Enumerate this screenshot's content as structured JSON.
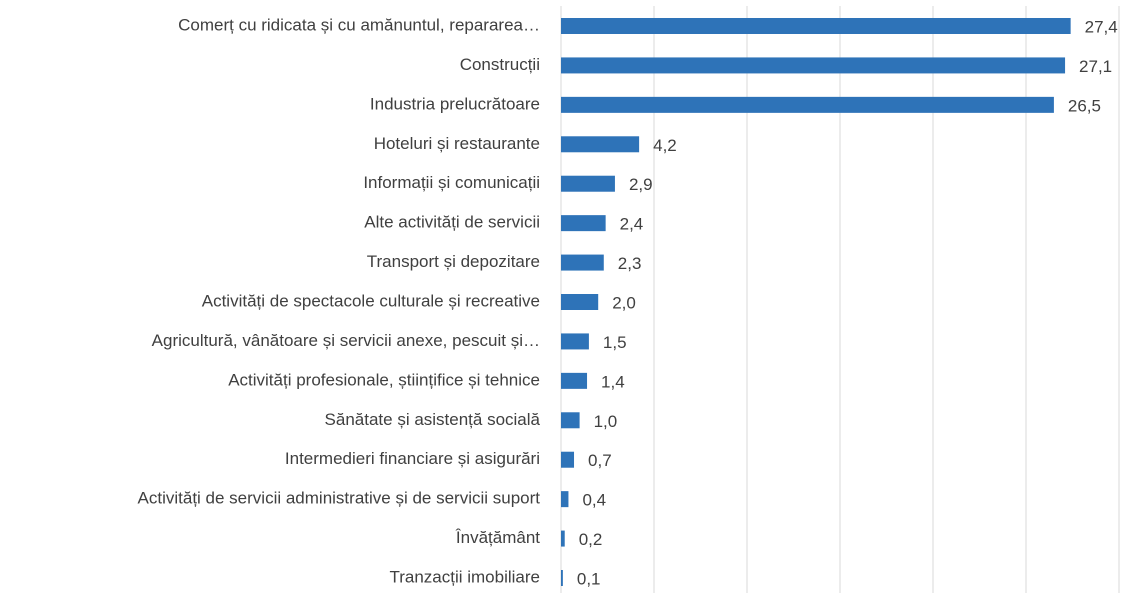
{
  "chart_data": {
    "type": "bar",
    "orientation": "horizontal",
    "categories": [
      "Comerț cu ridicata și cu amănuntul, repararea…",
      "Construcții",
      "Industria prelucrătoare",
      "Hoteluri și restaurante",
      "Informații și comunicații",
      "Alte activități de servicii",
      "Transport și depozitare",
      "Activități de spectacole culturale și recreative",
      "Agricultură, vânătoare și servicii anexe, pescuit și…",
      "Activități profesionale, științifice și tehnice",
      "Sănătate și asistență socială",
      "Intermedieri financiare și asigurări",
      "Activități de servicii administrative și de servicii suport",
      "Învățământ",
      "Tranzacții imobiliare"
    ],
    "values": [
      27.4,
      27.1,
      26.5,
      4.2,
      2.9,
      2.4,
      2.3,
      2.0,
      1.5,
      1.4,
      1.0,
      0.7,
      0.4,
      0.2,
      0.1
    ],
    "value_labels": [
      "27,4",
      "27,1",
      "26,5",
      "4,2",
      "2,9",
      "2,4",
      "2,3",
      "2,0",
      "1,5",
      "1,4",
      "1,0",
      "0,7",
      "0,4",
      "0,2",
      "0,1"
    ],
    "color": "#2e73b8",
    "xlim": [
      0,
      30
    ],
    "xticks": [
      0,
      5,
      10,
      15,
      20,
      25,
      30
    ],
    "grid": true
  }
}
